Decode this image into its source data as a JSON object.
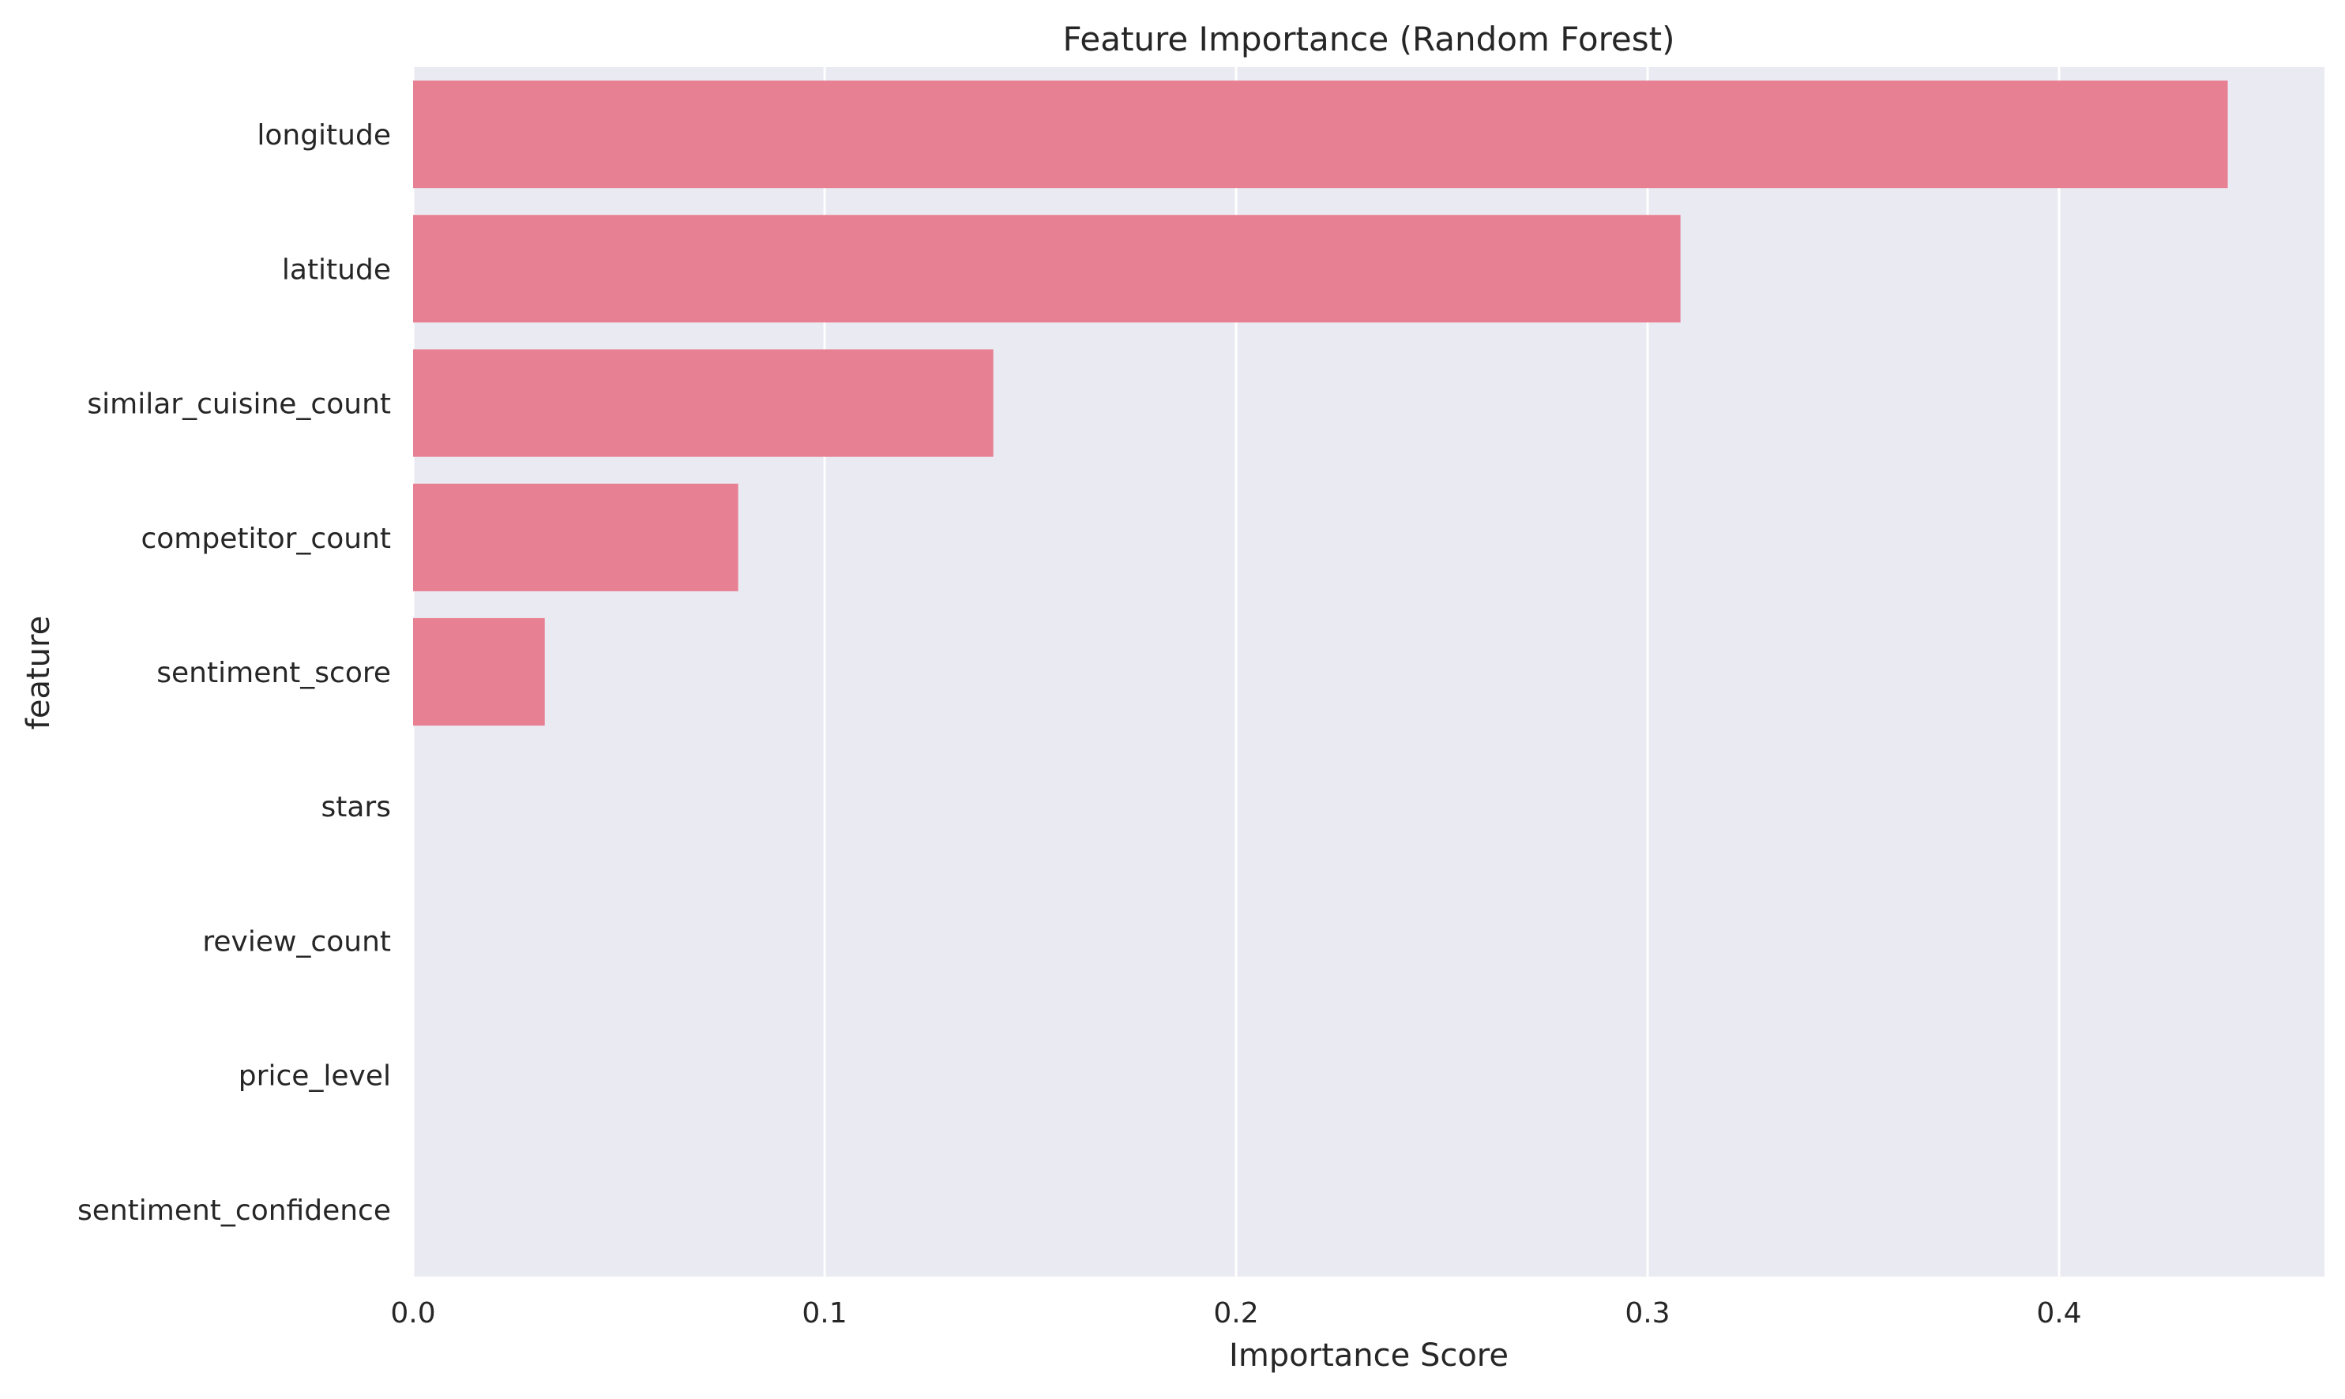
{
  "chart_data": {
    "type": "bar",
    "orientation": "horizontal",
    "title": "Feature Importance (Random Forest)",
    "xlabel": "Importance Score",
    "ylabel": "feature",
    "categories": [
      "longitude",
      "latitude",
      "similar_cuisine_count",
      "competitor_count",
      "sentiment_score",
      "stars",
      "review_count",
      "price_level",
      "sentiment_confidence"
    ],
    "values": [
      0.441,
      0.308,
      0.141,
      0.079,
      0.032,
      0.0,
      0.0,
      0.0,
      0.0
    ],
    "xlim": [
      0,
      0.4645
    ],
    "xticks": [
      0.0,
      0.1,
      0.2,
      0.3,
      0.4
    ],
    "xtick_labels": [
      "0.0",
      "0.1",
      "0.2",
      "0.3",
      "0.4"
    ],
    "grid": true,
    "legend": "none",
    "colors": {
      "bar": "#e88093",
      "plot_background": "#eaeaf2",
      "grid": "#ffffff",
      "text": "#262626"
    }
  }
}
